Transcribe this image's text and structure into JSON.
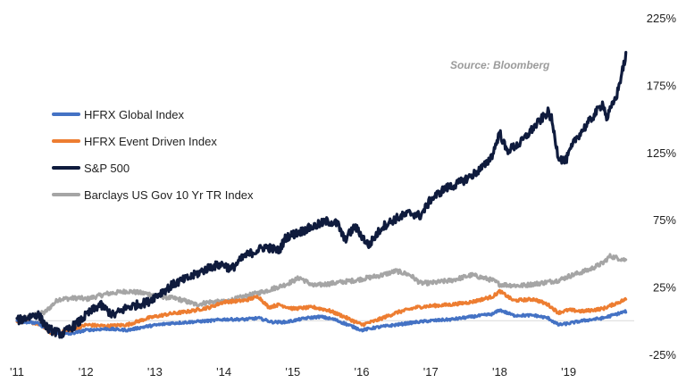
{
  "chart_data": {
    "type": "line",
    "title": "",
    "source": "Source: Bloomberg",
    "xlabel": "",
    "ylabel": "",
    "x_start": 2011.0,
    "x_end": 2019.83,
    "xlim": [
      2011.0,
      2019.95
    ],
    "ylim": [
      -25,
      225
    ],
    "x_tick_values": [
      2011,
      2012,
      2013,
      2014,
      2015,
      2016,
      2017,
      2018,
      2019
    ],
    "x_tick_labels": [
      "'11",
      "'12",
      "'13",
      "'14",
      "'15",
      "'16",
      "'17",
      "'18",
      "'19"
    ],
    "y_tick_values": [
      225,
      175,
      125,
      75,
      25,
      -25
    ],
    "y_tick_labels": [
      "225%",
      "175%",
      "125%",
      "75%",
      "25%",
      "-25%"
    ],
    "legend_position": "left",
    "series": [
      {
        "name": "HFRX Global Index",
        "color": "#4472c4",
        "points": [
          [
            2011.0,
            0
          ],
          [
            2011.3,
            -2
          ],
          [
            2011.5,
            -8
          ],
          [
            2011.75,
            -10
          ],
          [
            2012.0,
            -7
          ],
          [
            2012.3,
            -6
          ],
          [
            2012.6,
            -7
          ],
          [
            2012.9,
            -4
          ],
          [
            2013.2,
            -2
          ],
          [
            2013.5,
            -1
          ],
          [
            2013.8,
            0
          ],
          [
            2014.0,
            1
          ],
          [
            2014.3,
            1
          ],
          [
            2014.5,
            2
          ],
          [
            2014.7,
            -1
          ],
          [
            2014.9,
            -1
          ],
          [
            2015.2,
            2
          ],
          [
            2015.4,
            3
          ],
          [
            2015.6,
            1
          ],
          [
            2015.8,
            -3
          ],
          [
            2016.0,
            -7
          ],
          [
            2016.2,
            -5
          ],
          [
            2016.5,
            -3
          ],
          [
            2016.8,
            -1
          ],
          [
            2017.0,
            0
          ],
          [
            2017.3,
            1
          ],
          [
            2017.6,
            3
          ],
          [
            2017.9,
            5
          ],
          [
            2018.0,
            8
          ],
          [
            2018.2,
            4
          ],
          [
            2018.5,
            4
          ],
          [
            2018.7,
            2
          ],
          [
            2018.85,
            -3
          ],
          [
            2019.0,
            -2
          ],
          [
            2019.2,
            0
          ],
          [
            2019.5,
            2
          ],
          [
            2019.83,
            7
          ]
        ]
      },
      {
        "name": "HFRX Event Driven Index",
        "color": "#ed7d31",
        "points": [
          [
            2011.0,
            0
          ],
          [
            2011.3,
            -2
          ],
          [
            2011.5,
            -9
          ],
          [
            2011.75,
            -8
          ],
          [
            2012.0,
            -3
          ],
          [
            2012.3,
            -4
          ],
          [
            2012.6,
            -3
          ],
          [
            2012.9,
            2
          ],
          [
            2013.2,
            5
          ],
          [
            2013.5,
            7
          ],
          [
            2013.8,
            10
          ],
          [
            2014.0,
            14
          ],
          [
            2014.3,
            15
          ],
          [
            2014.5,
            18
          ],
          [
            2014.65,
            10
          ],
          [
            2014.8,
            12
          ],
          [
            2015.0,
            9
          ],
          [
            2015.3,
            10
          ],
          [
            2015.5,
            8
          ],
          [
            2015.7,
            4
          ],
          [
            2016.0,
            -3
          ],
          [
            2016.2,
            0
          ],
          [
            2016.5,
            6
          ],
          [
            2016.8,
            10
          ],
          [
            2017.0,
            11
          ],
          [
            2017.3,
            12
          ],
          [
            2017.6,
            14
          ],
          [
            2017.9,
            18
          ],
          [
            2018.0,
            22
          ],
          [
            2018.2,
            15
          ],
          [
            2018.5,
            16
          ],
          [
            2018.7,
            12
          ],
          [
            2018.85,
            6
          ],
          [
            2019.0,
            8
          ],
          [
            2019.2,
            7
          ],
          [
            2019.5,
            9
          ],
          [
            2019.83,
            16
          ]
        ]
      },
      {
        "name": "S&P 500",
        "color": "#0f1b3d",
        "points": [
          [
            2011.0,
            0
          ],
          [
            2011.3,
            5
          ],
          [
            2011.45,
            -6
          ],
          [
            2011.65,
            -10
          ],
          [
            2011.9,
            -1
          ],
          [
            2012.0,
            4
          ],
          [
            2012.2,
            12
          ],
          [
            2012.4,
            4
          ],
          [
            2012.6,
            10
          ],
          [
            2012.9,
            14
          ],
          [
            2013.0,
            18
          ],
          [
            2013.3,
            28
          ],
          [
            2013.5,
            32
          ],
          [
            2013.8,
            40
          ],
          [
            2014.0,
            42
          ],
          [
            2014.1,
            38
          ],
          [
            2014.3,
            48
          ],
          [
            2014.6,
            55
          ],
          [
            2014.8,
            52
          ],
          [
            2014.9,
            62
          ],
          [
            2015.1,
            66
          ],
          [
            2015.3,
            70
          ],
          [
            2015.5,
            74
          ],
          [
            2015.65,
            72
          ],
          [
            2015.75,
            60
          ],
          [
            2015.9,
            70
          ],
          [
            2016.0,
            63
          ],
          [
            2016.1,
            56
          ],
          [
            2016.3,
            70
          ],
          [
            2016.5,
            76
          ],
          [
            2016.7,
            80
          ],
          [
            2016.85,
            78
          ],
          [
            2017.0,
            90
          ],
          [
            2017.2,
            98
          ],
          [
            2017.4,
            102
          ],
          [
            2017.6,
            108
          ],
          [
            2017.8,
            116
          ],
          [
            2017.9,
            124
          ],
          [
            2018.0,
            140
          ],
          [
            2018.1,
            126
          ],
          [
            2018.3,
            132
          ],
          [
            2018.5,
            144
          ],
          [
            2018.7,
            155
          ],
          [
            2018.75,
            150
          ],
          [
            2018.85,
            122
          ],
          [
            2018.95,
            118
          ],
          [
            2019.1,
            135
          ],
          [
            2019.3,
            148
          ],
          [
            2019.4,
            155
          ],
          [
            2019.5,
            162
          ],
          [
            2019.55,
            150
          ],
          [
            2019.7,
            168
          ],
          [
            2019.83,
            197
          ]
        ]
      },
      {
        "name": "Barclays US Gov 10 Yr TR Index",
        "color": "#a5a5a5",
        "points": [
          [
            2011.0,
            0
          ],
          [
            2011.15,
            3
          ],
          [
            2011.4,
            6
          ],
          [
            2011.6,
            16
          ],
          [
            2011.9,
            17
          ],
          [
            2012.0,
            16
          ],
          [
            2012.3,
            20
          ],
          [
            2012.6,
            22
          ],
          [
            2012.9,
            20
          ],
          [
            2013.1,
            18
          ],
          [
            2013.35,
            16
          ],
          [
            2013.6,
            12
          ],
          [
            2013.8,
            14
          ],
          [
            2014.0,
            14
          ],
          [
            2014.3,
            18
          ],
          [
            2014.6,
            22
          ],
          [
            2014.9,
            27
          ],
          [
            2015.1,
            32
          ],
          [
            2015.3,
            26
          ],
          [
            2015.6,
            28
          ],
          [
            2015.9,
            30
          ],
          [
            2016.0,
            31
          ],
          [
            2016.3,
            34
          ],
          [
            2016.5,
            37
          ],
          [
            2016.7,
            34
          ],
          [
            2016.85,
            28
          ],
          [
            2017.0,
            28
          ],
          [
            2017.3,
            30
          ],
          [
            2017.6,
            34
          ],
          [
            2017.9,
            30
          ],
          [
            2018.0,
            27
          ],
          [
            2018.3,
            26
          ],
          [
            2018.6,
            28
          ],
          [
            2018.85,
            30
          ],
          [
            2019.0,
            33
          ],
          [
            2019.3,
            38
          ],
          [
            2019.5,
            43
          ],
          [
            2019.6,
            48
          ],
          [
            2019.83,
            45
          ]
        ]
      }
    ]
  }
}
